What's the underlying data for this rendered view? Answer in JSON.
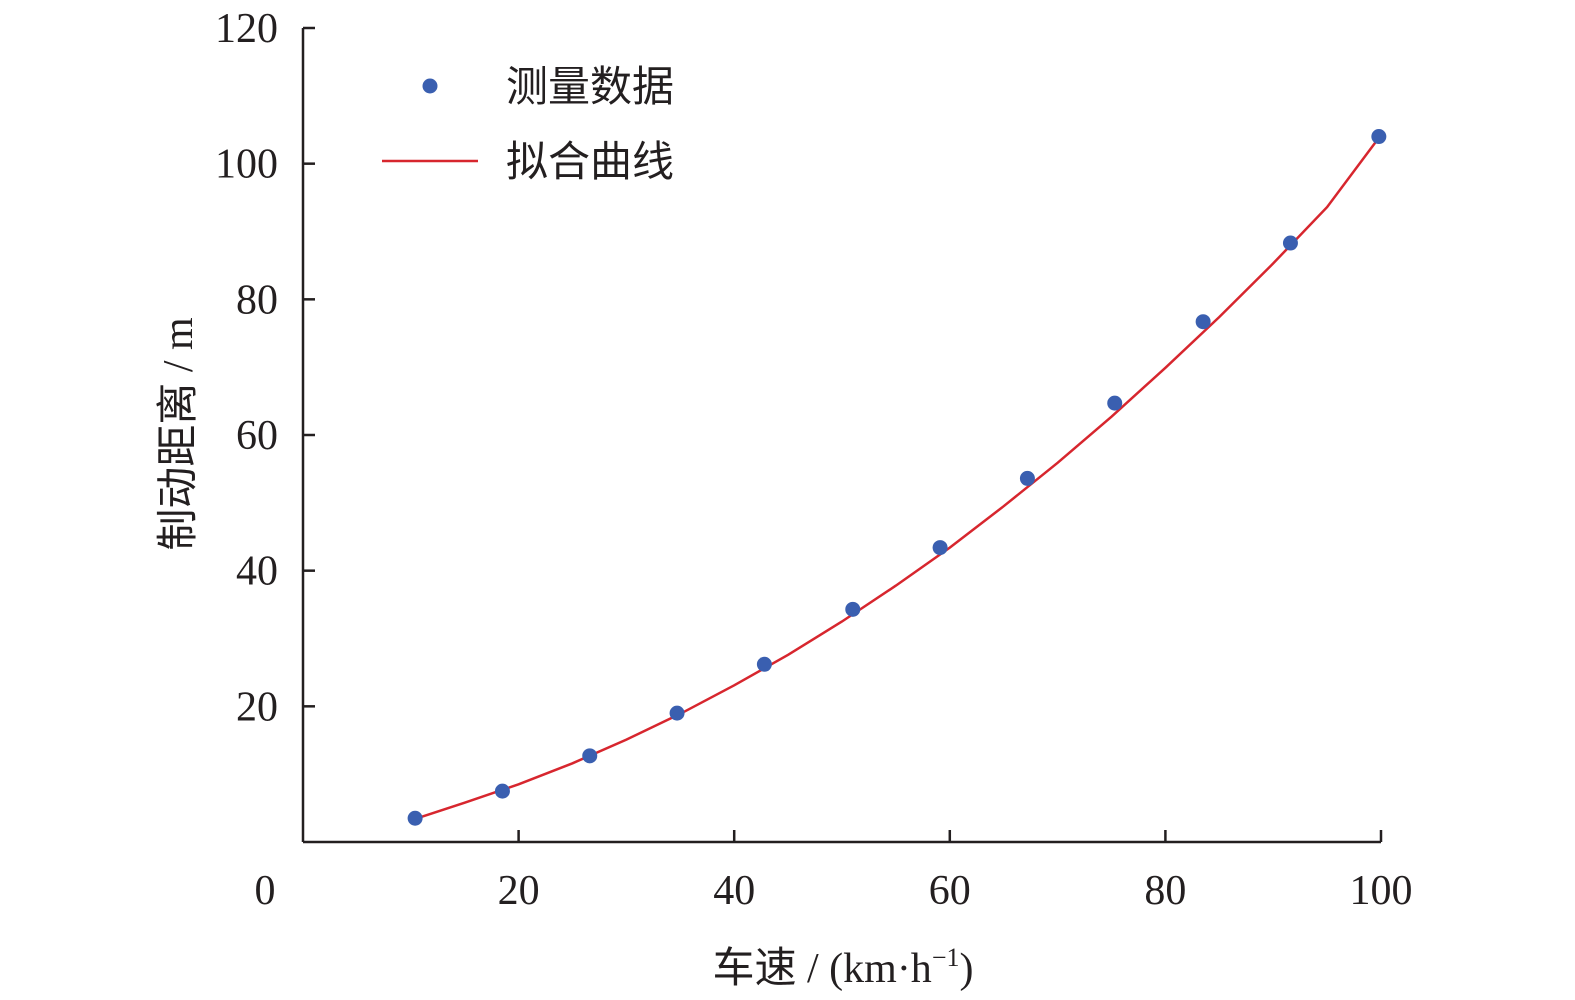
{
  "chart_data": {
    "type": "scatter",
    "x_label": "车速 / (km·h",
    "x_label_sup": "−1",
    "x_label_end": ")",
    "y_label": "制动距离 / m",
    "xlim": [
      0,
      100
    ],
    "ylim": [
      0,
      120
    ],
    "x_ticks": [
      0,
      20,
      40,
      60,
      80,
      100
    ],
    "y_ticks": [
      20,
      40,
      60,
      80,
      100,
      120
    ],
    "x_tick_labels": [
      "0",
      "20",
      "40",
      "60",
      "80",
      "100"
    ],
    "y_tick_labels": [
      "20",
      "40",
      "60",
      "80",
      "100",
      "120"
    ],
    "legend_position": "top-left",
    "series": [
      {
        "name": "测量数据",
        "kind": "scatter",
        "color": "#3a5fb0",
        "x": [
          10.4,
          18.5,
          26.6,
          34.7,
          42.8,
          51.0,
          59.1,
          67.2,
          75.3,
          83.5,
          91.6,
          99.8
        ],
        "y": [
          3.5,
          7.5,
          12.7,
          19.0,
          26.2,
          34.3,
          43.4,
          53.6,
          64.7,
          76.7,
          88.3,
          104.0
        ]
      },
      {
        "name": "拟合曲线",
        "kind": "line",
        "color": "#d7262e",
        "x": [
          10.4,
          15,
          20,
          25,
          30,
          35,
          40,
          45,
          50,
          55,
          60,
          65,
          70,
          75,
          80,
          85,
          90,
          95,
          99.8
        ],
        "y": [
          3.4,
          5.8,
          8.5,
          11.6,
          15.1,
          18.9,
          23.1,
          27.6,
          32.5,
          37.8,
          43.4,
          49.5,
          55.9,
          62.7,
          69.9,
          77.4,
          85.3,
          93.6,
          103.8
        ]
      }
    ]
  }
}
